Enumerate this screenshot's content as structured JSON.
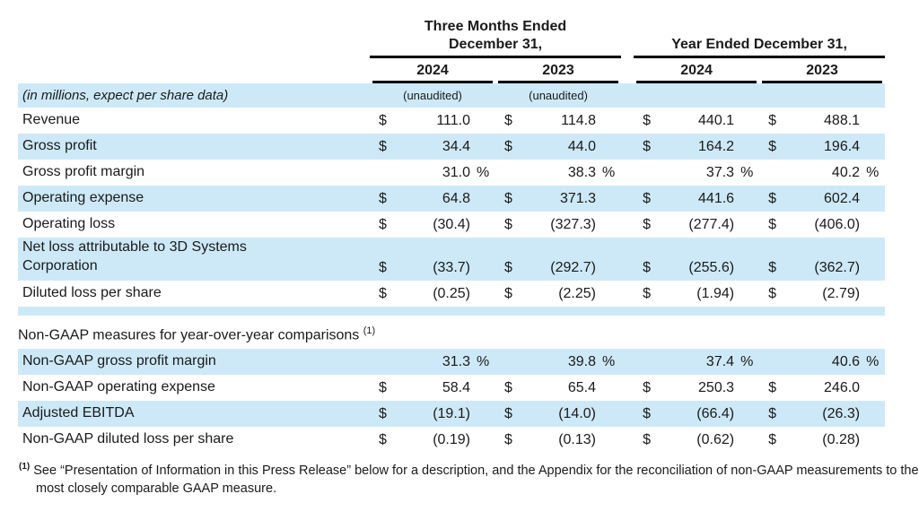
{
  "colors": {
    "row_shade": "#cde9f7",
    "rule": "#000000",
    "text": "#1a1a1a"
  },
  "table": {
    "header": {
      "groups": [
        {
          "title": "Three Months Ended December 31,",
          "years": [
            "2024",
            "2023"
          ]
        },
        {
          "title": "Year Ended December 31,",
          "years": [
            "2024",
            "2023"
          ]
        }
      ]
    },
    "rows": [
      {
        "type": "note",
        "shaded": true,
        "label": "(in millions, expect per share data)",
        "unaudited_groups": [
          "(unaudited)",
          "(unaudited)",
          "",
          ""
        ]
      },
      {
        "type": "data",
        "shaded": false,
        "label": "Revenue",
        "cells": [
          {
            "cur": "$",
            "val": "111.0",
            "pct": ""
          },
          {
            "cur": "$",
            "val": "114.8",
            "pct": ""
          },
          {
            "cur": "$",
            "val": "440.1",
            "pct": ""
          },
          {
            "cur": "$",
            "val": "488.1",
            "pct": ""
          }
        ]
      },
      {
        "type": "data",
        "shaded": true,
        "label": "Gross profit",
        "cells": [
          {
            "cur": "$",
            "val": "34.4",
            "pct": ""
          },
          {
            "cur": "$",
            "val": "44.0",
            "pct": ""
          },
          {
            "cur": "$",
            "val": "164.2",
            "pct": ""
          },
          {
            "cur": "$",
            "val": "196.4",
            "pct": ""
          }
        ]
      },
      {
        "type": "data",
        "shaded": false,
        "label": "Gross profit margin",
        "cells": [
          {
            "cur": "",
            "val": "31.0",
            "pct": "%"
          },
          {
            "cur": "",
            "val": "38.3",
            "pct": "%"
          },
          {
            "cur": "",
            "val": "37.3",
            "pct": "%"
          },
          {
            "cur": "",
            "val": "40.2",
            "pct": "%"
          }
        ]
      },
      {
        "type": "data",
        "shaded": true,
        "label": "Operating expense",
        "cells": [
          {
            "cur": "$",
            "val": "64.8",
            "pct": ""
          },
          {
            "cur": "$",
            "val": "371.3",
            "pct": ""
          },
          {
            "cur": "$",
            "val": "441.6",
            "pct": ""
          },
          {
            "cur": "$",
            "val": "602.4",
            "pct": ""
          }
        ]
      },
      {
        "type": "data",
        "shaded": false,
        "label": "Operating loss",
        "cells": [
          {
            "cur": "$",
            "val": "(30.4)",
            "pct": ""
          },
          {
            "cur": "$",
            "val": "(327.3)",
            "pct": ""
          },
          {
            "cur": "$",
            "val": "(277.4)",
            "pct": ""
          },
          {
            "cur": "$",
            "val": "(406.0)",
            "pct": ""
          }
        ]
      },
      {
        "type": "data",
        "shaded": true,
        "tall": true,
        "label": "Net loss attributable to 3D Systems\nCorporation",
        "cells": [
          {
            "cur": "$",
            "val": "(33.7)",
            "pct": ""
          },
          {
            "cur": "$",
            "val": "(292.7)",
            "pct": ""
          },
          {
            "cur": "$",
            "val": "(255.6)",
            "pct": ""
          },
          {
            "cur": "$",
            "val": "(362.7)",
            "pct": ""
          }
        ]
      },
      {
        "type": "data",
        "shaded": false,
        "label": "Diluted loss per share",
        "cells": [
          {
            "cur": "$",
            "val": "(0.25)",
            "pct": ""
          },
          {
            "cur": "$",
            "val": "(2.25)",
            "pct": ""
          },
          {
            "cur": "$",
            "val": "(1.94)",
            "pct": ""
          },
          {
            "cur": "$",
            "val": "(2.79)",
            "pct": ""
          }
        ]
      },
      {
        "type": "separator",
        "shaded": true
      },
      {
        "type": "section",
        "shaded": false,
        "label": "Non-GAAP measures for year-over-year comparisons",
        "sup": "(1)"
      },
      {
        "type": "data",
        "shaded": true,
        "label": "Non-GAAP gross profit margin",
        "cells": [
          {
            "cur": "",
            "val": "31.3",
            "pct": "%"
          },
          {
            "cur": "",
            "val": "39.8",
            "pct": "%"
          },
          {
            "cur": "",
            "val": "37.4",
            "pct": "%"
          },
          {
            "cur": "",
            "val": "40.6",
            "pct": "%"
          }
        ]
      },
      {
        "type": "data",
        "shaded": false,
        "label": "Non-GAAP operating expense",
        "cells": [
          {
            "cur": "$",
            "val": "58.4",
            "pct": ""
          },
          {
            "cur": "$",
            "val": "65.4",
            "pct": ""
          },
          {
            "cur": "$",
            "val": "250.3",
            "pct": ""
          },
          {
            "cur": "$",
            "val": "246.0",
            "pct": ""
          }
        ]
      },
      {
        "type": "data",
        "shaded": true,
        "label": "Adjusted EBITDA",
        "cells": [
          {
            "cur": "$",
            "val": "(19.1)",
            "pct": ""
          },
          {
            "cur": "$",
            "val": "(14.0)",
            "pct": ""
          },
          {
            "cur": "$",
            "val": "(66.4)",
            "pct": ""
          },
          {
            "cur": "$",
            "val": "(26.3)",
            "pct": ""
          }
        ]
      },
      {
        "type": "data",
        "shaded": false,
        "label": "Non-GAAP diluted loss per share",
        "cells": [
          {
            "cur": "$",
            "val": "(0.19)",
            "pct": ""
          },
          {
            "cur": "$",
            "val": "(0.13)",
            "pct": ""
          },
          {
            "cur": "$",
            "val": "(0.62)",
            "pct": ""
          },
          {
            "cur": "$",
            "val": "(0.28)",
            "pct": ""
          }
        ]
      }
    ]
  },
  "footnote": {
    "marker": "(1)",
    "text": " See “Presentation of Information in this Press Release” below for a description, and the Appendix for the reconciliation of non-GAAP measurements to the most closely comparable GAAP measure."
  }
}
